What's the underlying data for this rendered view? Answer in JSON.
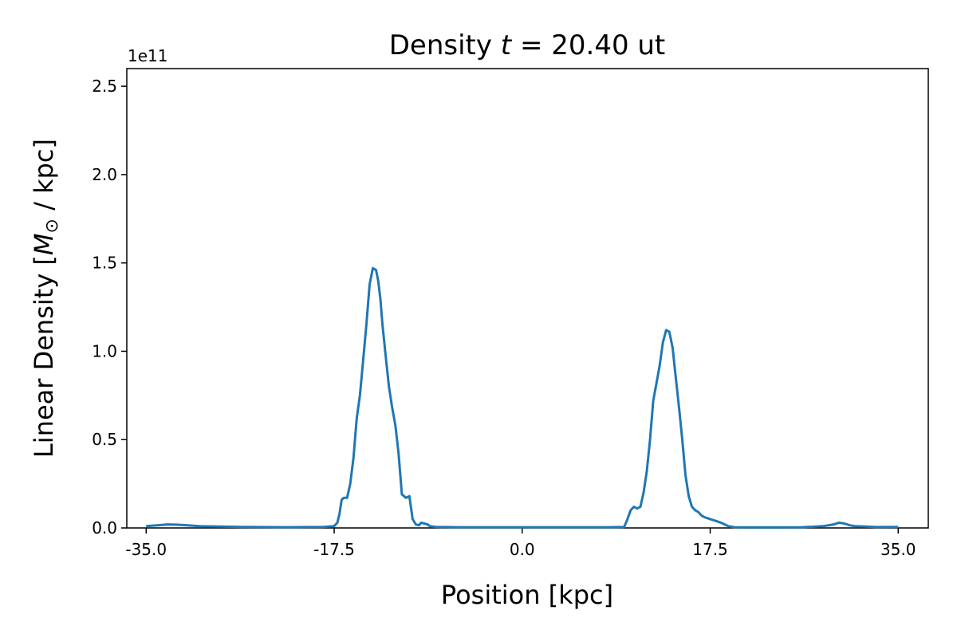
{
  "chart_data": {
    "type": "line",
    "title_prefix": "Density ",
    "title_var": "t",
    "title_suffix": " =  20.40 ut",
    "xlabel": "Position [kpc]",
    "ylabel_prefix": "Linear Density [",
    "ylabel_sym": "M",
    "ylabel_sub": "⊙",
    "ylabel_suffix": " / kpc]",
    "y_offset_label": "1e11",
    "xlim": [
      -36.8,
      37.8
    ],
    "ylim": [
      0,
      2.6
    ],
    "x_ticks": [
      -35.0,
      -17.5,
      0.0,
      17.5,
      35.0
    ],
    "x_tick_labels": [
      "-35.0",
      "-17.5",
      "0.0",
      "17.5",
      "35.0"
    ],
    "y_ticks": [
      0.0,
      0.5,
      1.0,
      1.5,
      2.0,
      2.5
    ],
    "y_tick_labels": [
      "0.0",
      "0.5",
      "1.0",
      "1.5",
      "2.0",
      "2.5"
    ],
    "grid": false,
    "series_color": "#1f77b4",
    "series": [
      {
        "x": [
          -35.0,
          -34.0,
          -33.0,
          -32.0,
          -30.0,
          -28.0,
          -26.0,
          -24.0,
          -22.0,
          -20.0,
          -18.5,
          -17.5,
          -17.2,
          -17.0,
          -16.8,
          -16.6,
          -16.3,
          -16.0,
          -15.7,
          -15.4,
          -15.1,
          -14.8,
          -14.5,
          -14.2,
          -13.9,
          -13.6,
          -13.4,
          -13.2,
          -13.0,
          -12.7,
          -12.4,
          -12.1,
          -11.8,
          -11.5,
          -11.2,
          -10.8,
          -10.5,
          -10.2,
          -9.9,
          -9.6,
          -9.4,
          -9.1,
          -8.8,
          -8.6,
          -8.3,
          -8.0,
          -7.0,
          -6.0,
          -5.0,
          -3.0,
          0.0,
          3.0,
          6.0,
          8.0,
          9.5,
          9.8,
          10.1,
          10.4,
          10.7,
          11.0,
          11.3,
          11.6,
          11.9,
          12.2,
          12.5,
          12.8,
          13.1,
          13.4,
          13.7,
          14.0,
          14.3,
          14.6,
          14.9,
          15.2,
          15.5,
          15.8,
          16.1,
          16.4,
          16.7,
          17.0,
          17.5,
          18.0,
          18.5,
          19.2,
          19.8,
          20.5,
          22.0,
          24.0,
          26.0,
          28.0,
          29.0,
          29.5,
          30.0,
          30.5,
          31.0,
          32.0,
          33.0,
          34.0,
          35.0
        ],
        "y": [
          0.01,
          0.015,
          0.02,
          0.018,
          0.01,
          0.008,
          0.006,
          0.005,
          0.004,
          0.005,
          0.006,
          0.01,
          0.03,
          0.08,
          0.16,
          0.17,
          0.17,
          0.25,
          0.4,
          0.62,
          0.75,
          0.95,
          1.15,
          1.38,
          1.47,
          1.46,
          1.4,
          1.3,
          1.15,
          0.97,
          0.8,
          0.68,
          0.58,
          0.42,
          0.19,
          0.17,
          0.18,
          0.05,
          0.02,
          0.015,
          0.03,
          0.025,
          0.02,
          0.01,
          0.008,
          0.006,
          0.005,
          0.004,
          0.004,
          0.004,
          0.004,
          0.004,
          0.004,
          0.004,
          0.006,
          0.05,
          0.1,
          0.12,
          0.11,
          0.12,
          0.2,
          0.32,
          0.5,
          0.72,
          0.82,
          0.92,
          1.05,
          1.12,
          1.11,
          1.02,
          0.85,
          0.68,
          0.5,
          0.3,
          0.18,
          0.12,
          0.1,
          0.09,
          0.07,
          0.06,
          0.05,
          0.04,
          0.03,
          0.01,
          0.004,
          0.003,
          0.003,
          0.003,
          0.004,
          0.01,
          0.02,
          0.03,
          0.025,
          0.015,
          0.01,
          0.008,
          0.005,
          0.006,
          0.006
        ]
      }
    ]
  }
}
